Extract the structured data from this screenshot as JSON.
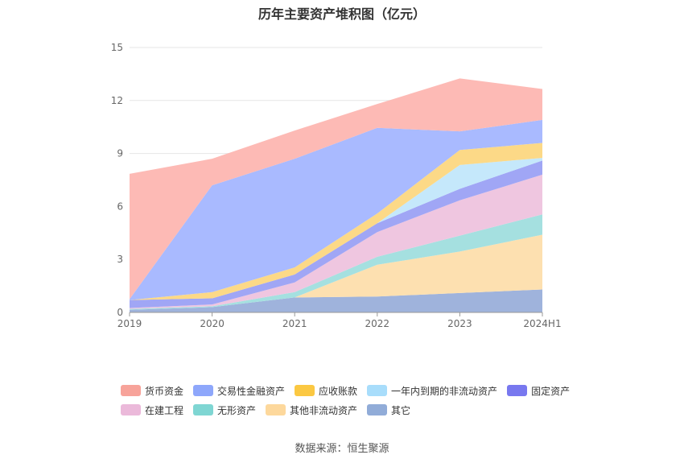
{
  "chart_data": {
    "type": "area",
    "stacked": true,
    "title": "历年主要资产堆积图（亿元）",
    "categories": [
      "2019",
      "2020",
      "2021",
      "2022",
      "2023",
      "2024H1"
    ],
    "ylim": [
      0,
      15
    ],
    "yticks": [
      0,
      3,
      6,
      9,
      12,
      15
    ],
    "grid": true,
    "legend_position": "bottom",
    "series": [
      {
        "name": "其它",
        "color": "#9fb3dc",
        "values": [
          0.15,
          0.3,
          0.85,
          0.9,
          1.1,
          1.3
        ]
      },
      {
        "name": "其他非流动资产",
        "color": "#fde0b0",
        "values": [
          0.0,
          0.0,
          0.0,
          1.8,
          2.35,
          3.1
        ]
      },
      {
        "name": "无形资产",
        "color": "#a5e0e0",
        "values": [
          0.05,
          0.05,
          0.3,
          0.45,
          0.9,
          1.15
        ]
      },
      {
        "name": "在建工程",
        "color": "#efc6e0",
        "values": [
          0.05,
          0.1,
          0.55,
          1.4,
          2.0,
          2.25
        ]
      },
      {
        "name": "固定资产",
        "color": "#a0a6f5",
        "values": [
          0.45,
          0.35,
          0.45,
          0.5,
          0.65,
          0.8
        ]
      },
      {
        "name": "一年内到期的非流动资产",
        "color": "#c5e8fb",
        "values": [
          0.0,
          0.0,
          0.0,
          0.0,
          1.35,
          0.15
        ]
      },
      {
        "name": "应收账款",
        "color": "#fcd987",
        "values": [
          0.0,
          0.35,
          0.4,
          0.55,
          0.85,
          0.85
        ]
      },
      {
        "name": "交易性金融资产",
        "color": "#a9baff",
        "values": [
          0.05,
          6.05,
          6.15,
          4.85,
          1.05,
          1.3
        ]
      },
      {
        "name": "货币资金",
        "color": "#fdbab5",
        "values": [
          7.1,
          1.5,
          1.6,
          1.35,
          3.0,
          1.75
        ]
      }
    ]
  },
  "legend": [
    [
      {
        "label": "货币资金",
        "color": "#f7a39a"
      },
      {
        "label": "交易性金融资产",
        "color": "#8ea7fb"
      },
      {
        "label": "应收账款",
        "color": "#fbc842"
      },
      {
        "label": "一年内到期的非流动资产",
        "color": "#a8ddfb"
      },
      {
        "label": "固定资产",
        "color": "#7878ef"
      }
    ],
    [
      {
        "label": "在建工程",
        "color": "#ebb9da"
      },
      {
        "label": "无形资产",
        "color": "#7fd6d3"
      },
      {
        "label": "其他非流动资产",
        "color": "#fdd89c"
      },
      {
        "label": "其它",
        "color": "#91acd8"
      }
    ]
  ],
  "source": "数据来源：恒生聚源"
}
